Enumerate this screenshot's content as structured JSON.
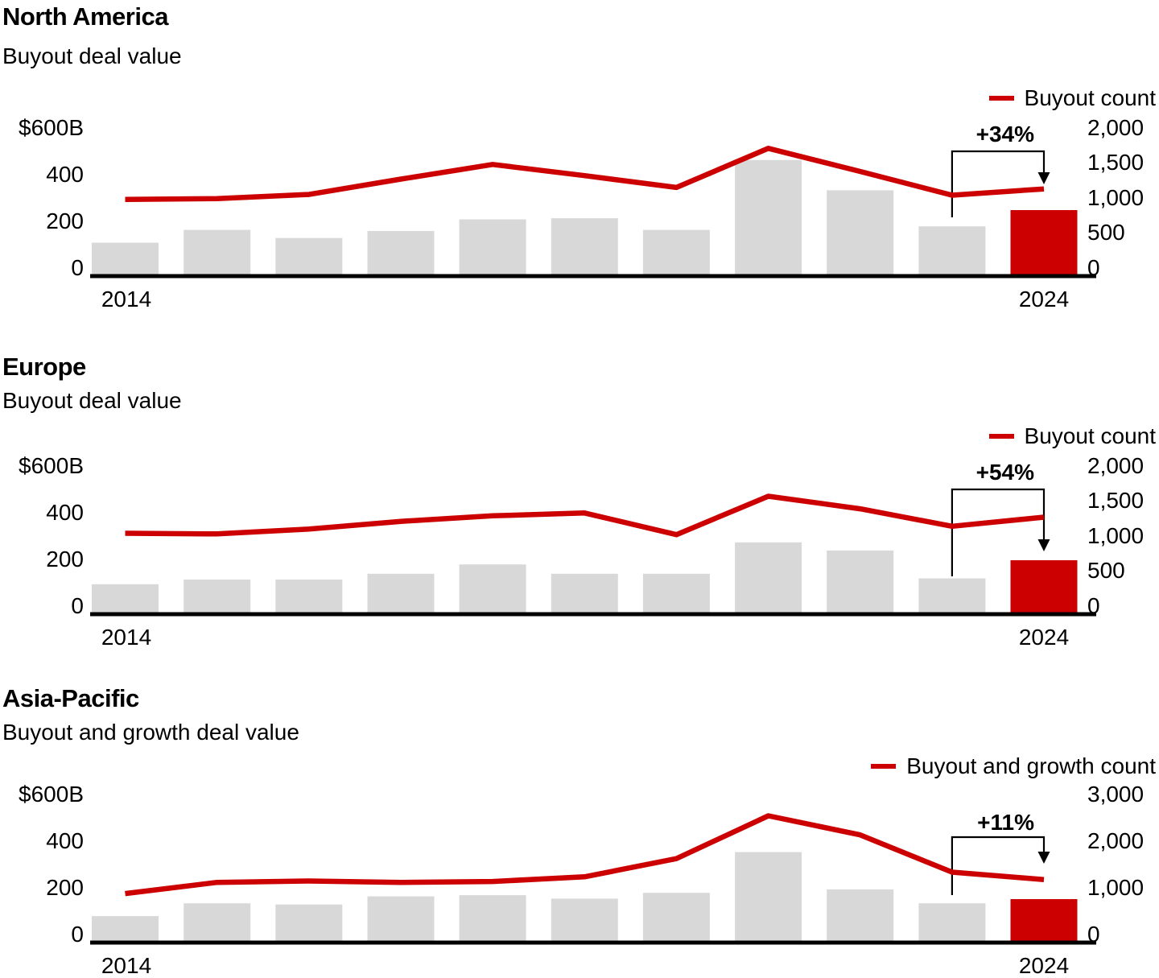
{
  "page": {
    "background": "#ffffff",
    "accent_red": "#cc0000",
    "bar_gray": "#d8d8d8",
    "axis_black": "#000000"
  },
  "charts": [
    {
      "title": "North America",
      "subtitle": "Buyout deal value",
      "legend_label": "Buyout count",
      "annotation": "+34%",
      "x_first": "2014",
      "x_last": "2024",
      "left_axis": {
        "labels": [
          "$600B",
          "400",
          "200",
          "0"
        ],
        "values": [
          600,
          400,
          200,
          0
        ],
        "max": 600
      },
      "right_axis": {
        "labels": [
          "2,000",
          "1,500",
          "1,000",
          "500",
          "0"
        ],
        "values": [
          2000,
          1500,
          1000,
          500,
          0
        ],
        "max": 2000
      },
      "chart_data": {
        "type": "bar",
        "subtype": "combo-bar-line-dual-axis",
        "categories": [
          "2014",
          "2015",
          "2016",
          "2017",
          "2018",
          "2019",
          "2020",
          "2021",
          "2022",
          "2023",
          "2024"
        ],
        "series": [
          {
            "name": "Buyout deal value ($B)",
            "type": "bar",
            "axis": "left",
            "values": [
              135,
              190,
              155,
              185,
              235,
              240,
              190,
              490,
              360,
              205,
              275
            ]
          },
          {
            "name": "Buyout count",
            "type": "line",
            "axis": "right",
            "values": [
              1070,
              1080,
              1140,
              1360,
              1570,
              1410,
              1240,
              1800,
              1470,
              1130,
              1220
            ]
          }
        ],
        "ylim_left": [
          0,
          600
        ],
        "ylim_right": [
          0,
          2000
        ],
        "grid": false,
        "legend_position": "top-right",
        "highlight_year": "2024",
        "annotation_change_2023_to_2024": "+34%"
      }
    },
    {
      "title": "Europe",
      "subtitle": "Buyout deal value",
      "legend_label": "Buyout count",
      "annotation": "+54%",
      "x_first": "2014",
      "x_last": "2024",
      "left_axis": {
        "labels": [
          "$600B",
          "400",
          "200",
          "0"
        ],
        "values": [
          600,
          400,
          200,
          0
        ],
        "max": 600
      },
      "right_axis": {
        "labels": [
          "2,000",
          "1,500",
          "1,000",
          "500",
          "0"
        ],
        "values": [
          2000,
          1500,
          1000,
          500,
          0
        ],
        "max": 2000
      },
      "chart_data": {
        "type": "bar",
        "subtype": "combo-bar-line-dual-axis",
        "categories": [
          "2014",
          "2015",
          "2016",
          "2017",
          "2018",
          "2019",
          "2020",
          "2021",
          "2022",
          "2023",
          "2024"
        ],
        "series": [
          {
            "name": "Buyout deal value ($B)",
            "type": "bar",
            "axis": "left",
            "values": [
              120,
              140,
              140,
              165,
              205,
              165,
              165,
              300,
              265,
              145,
              223
            ]
          },
          {
            "name": "Buyout count",
            "type": "line",
            "axis": "right",
            "values": [
              1130,
              1120,
              1190,
              1300,
              1380,
              1420,
              1110,
              1660,
              1480,
              1230,
              1360
            ]
          }
        ],
        "ylim_left": [
          0,
          600
        ],
        "ylim_right": [
          0,
          2000
        ],
        "grid": false,
        "legend_position": "top-right",
        "highlight_year": "2024",
        "annotation_change_2023_to_2024": "+54%"
      }
    },
    {
      "title": "Asia-Pacific",
      "subtitle": "Buyout and growth deal value",
      "legend_label": "Buyout and growth count",
      "annotation": "+11%",
      "x_first": "2014",
      "x_last": "2024",
      "left_axis": {
        "labels": [
          "$600B",
          "400",
          "200",
          "0"
        ],
        "values": [
          600,
          400,
          200,
          0
        ],
        "max": 600
      },
      "right_axis": {
        "labels": [
          "3,000",
          "2,000",
          "1,000",
          "0"
        ],
        "values": [
          3000,
          2000,
          1000,
          0
        ],
        "max": 3000
      },
      "chart_data": {
        "type": "bar",
        "subtype": "combo-bar-line-dual-axis",
        "categories": [
          "2014",
          "2015",
          "2016",
          "2017",
          "2018",
          "2019",
          "2020",
          "2021",
          "2022",
          "2023",
          "2024"
        ],
        "series": [
          {
            "name": "Buyout and growth deal value ($B)",
            "type": "bar",
            "axis": "left",
            "values": [
              105,
              160,
              155,
              190,
              195,
              180,
              205,
              380,
              220,
              160,
              178
            ]
          },
          {
            "name": "Buyout and growth count",
            "type": "line",
            "axis": "right",
            "values": [
              1010,
              1250,
              1280,
              1250,
              1270,
              1370,
              1760,
              2680,
              2270,
              1470,
              1310
            ]
          }
        ],
        "ylim_left": [
          0,
          600
        ],
        "ylim_right": [
          0,
          3000
        ],
        "grid": false,
        "legend_position": "top-right",
        "highlight_year": "2024",
        "annotation_change_2023_to_2024": "+11%"
      }
    }
  ]
}
